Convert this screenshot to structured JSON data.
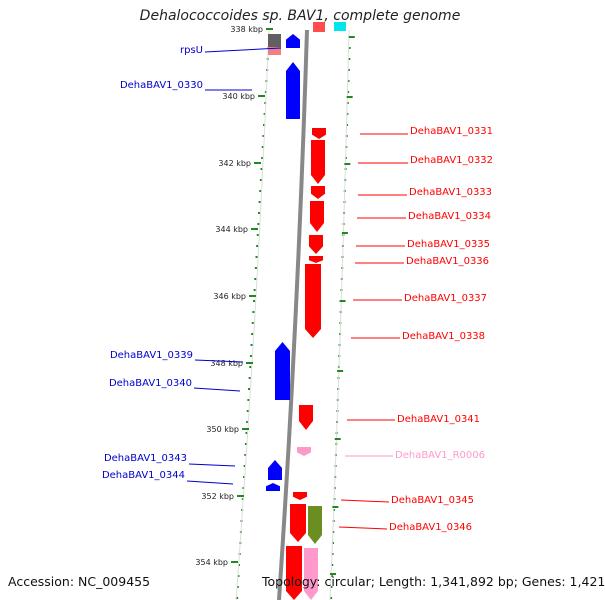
{
  "title": "Dehalococcoides sp. BAV1, complete genome",
  "footer": {
    "accession": "Accession: NC_009455",
    "summary": "Topology: circular; Length: 1,341,892 bp; Genes: 1,421"
  },
  "colors": {
    "forward": "#ff0000",
    "reverse": "#0000ff",
    "rna": "#ff99cc",
    "other": "#6b8e23",
    "grey": "#777777",
    "backbone": "#888888",
    "ticks": "#1f8a1f",
    "cyan": "#00e5ee"
  },
  "ticks": [
    {
      "label": "338 kbp"
    },
    {
      "label": "340 kbp"
    },
    {
      "label": "342 kbp"
    },
    {
      "label": "344 kbp"
    },
    {
      "label": "346 kbp"
    },
    {
      "label": "348 kbp"
    },
    {
      "label": "350 kbp"
    },
    {
      "label": "352 kbp"
    },
    {
      "label": "354 kbp"
    }
  ],
  "genes": [
    {
      "name": "rpsU",
      "strand": "reverse"
    },
    {
      "name": "DehaBAV1_0330",
      "strand": "reverse"
    },
    {
      "name": "DehaBAV1_0331",
      "strand": "forward"
    },
    {
      "name": "DehaBAV1_0332",
      "strand": "forward"
    },
    {
      "name": "DehaBAV1_0333",
      "strand": "forward"
    },
    {
      "name": "DehaBAV1_0334",
      "strand": "forward"
    },
    {
      "name": "DehaBAV1_0335",
      "strand": "forward"
    },
    {
      "name": "DehaBAV1_0336",
      "strand": "forward"
    },
    {
      "name": "DehaBAV1_0337",
      "strand": "forward"
    },
    {
      "name": "DehaBAV1_0338",
      "strand": "forward"
    },
    {
      "name": "DehaBAV1_0339",
      "strand": "reverse"
    },
    {
      "name": "DehaBAV1_0340",
      "strand": "reverse"
    },
    {
      "name": "DehaBAV1_0341",
      "strand": "forward"
    },
    {
      "name": "DehaBAV1_R0006",
      "strand": "rna"
    },
    {
      "name": "DehaBAV1_0343",
      "strand": "reverse"
    },
    {
      "name": "DehaBAV1_0344",
      "strand": "reverse"
    },
    {
      "name": "DehaBAV1_0345",
      "strand": "forward"
    },
    {
      "name": "DehaBAV1_0346",
      "strand": "forward"
    }
  ]
}
